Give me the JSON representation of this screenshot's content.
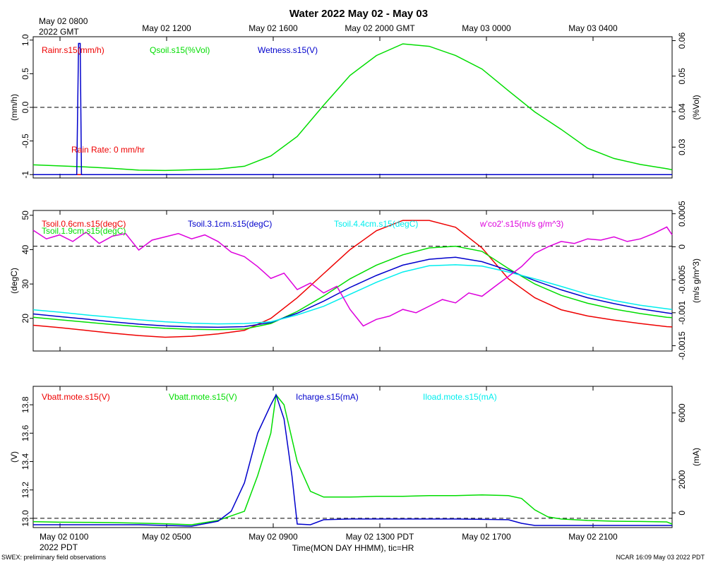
{
  "title": "Water 2022 May 02 - May 03",
  "top_axis": {
    "first_label": [
      "May 02 0800",
      "2022 GMT"
    ],
    "labels": [
      "May 02 1200",
      "May 02 1600",
      "May 02 2000 GMT",
      "May 03 0000",
      "May 03 0400"
    ]
  },
  "bottom_axis": {
    "first_label": [
      "May 02 0100",
      "2022 PDT"
    ],
    "labels": [
      "May 02 0500",
      "May 02 0900",
      "May 02 1300 PDT",
      "May 02 1700",
      "May 02 2100"
    ],
    "xlabel": "Time(MON DAY HHMM), tic=HR"
  },
  "footer_left": "SWEX: preliminary field observations",
  "footer_right": "NCAR 16:09 May 03 2022 PDT",
  "colors": {
    "red": "#ee0000",
    "green": "#00dd00",
    "blue": "#0000cc",
    "cyan": "#00eeee",
    "magenta": "#dd00dd",
    "black": "#000000"
  },
  "chart_data": [
    {
      "type": "line",
      "x_units": "hours since May 02 0000 PDT",
      "xlim": [
        0.0,
        24.2
      ],
      "left_axis": {
        "label": "(mm/h)",
        "ylim": [
          -1.05,
          1.05
        ],
        "ticks": [
          "-1",
          "-0.5",
          "0.0",
          "0.5",
          "1.0"
        ]
      },
      "right_axis": {
        "label": "(%Vol)",
        "ylim": [
          0.0213,
          0.0611
        ],
        "ticks": [
          "0.03",
          "0.04",
          "0.05",
          "0.06"
        ]
      },
      "legend": [
        "Rainr.s15(mm/h)",
        "Qsoil.s15(%Vol)",
        "Wetness.s15(V)"
      ],
      "annotation": "Rain Rate: 0 mm/hr",
      "reference_line": 0.0,
      "series": [
        {
          "name": "Rainr.s15(mm/h)",
          "axis": "left",
          "color": "red",
          "x": [
            0.0,
            24.2
          ],
          "y": [
            -1.0,
            -1.0
          ]
        },
        {
          "name": "Qsoil.s15(%Vol)",
          "axis": "right",
          "color": "green",
          "x": [
            0.0,
            1.0,
            2.0,
            3.0,
            4.0,
            5.0,
            6.0,
            7.0,
            8.0,
            9.0,
            10.0,
            11.0,
            12.0,
            13.0,
            14.0,
            15.0,
            16.0,
            17.0,
            18.0,
            19.0,
            20.0,
            21.0,
            22.0,
            23.0,
            24.0,
            24.2
          ],
          "y": [
            0.025,
            0.0247,
            0.0244,
            0.024,
            0.0235,
            0.0234,
            0.0236,
            0.0238,
            0.0246,
            0.0275,
            0.033,
            0.0418,
            0.0502,
            0.0558,
            0.0591,
            0.0584,
            0.0558,
            0.052,
            0.0459,
            0.0399,
            0.035,
            0.0297,
            0.0268,
            0.0251,
            0.0239,
            0.0236
          ]
        },
        {
          "name": "Wetness.s15(V)",
          "axis": "left",
          "color": "blue",
          "x": [
            0.0,
            1.65,
            1.72,
            1.78,
            1.83,
            24.2
          ],
          "y": [
            -1.0,
            -1.0,
            0.95,
            0.95,
            -1.0,
            -1.0
          ]
        }
      ]
    },
    {
      "type": "line",
      "x_units": "hours since May 02 0000 PDT",
      "xlim": [
        0.0,
        24.2
      ],
      "left_axis": {
        "label": "(degC)",
        "ylim": [
          10.5,
          51.4
        ],
        "ticks": [
          "20",
          "30",
          "40",
          "50"
        ]
      },
      "right_axis": {
        "label": "(m/s g/m^3)",
        "ylim": [
          -0.00158,
          0.00055
        ],
        "ticks": [
          "-0.0015",
          "-0.001",
          "-0.0005",
          "0",
          "0.0005"
        ]
      },
      "legend": [
        "Tsoil.0.6cm.s15(degC)",
        "Tsoil.1.9cm.s15(degC)",
        "Tsoil.3.1cm.s15(degC)",
        "Tsoil.4.4cm.s15(degC)",
        "w'co2'.s15(m/s g/m^3)"
      ],
      "reference_line": 41.0,
      "series": [
        {
          "name": "Tsoil.0.6cm.s15(degC)",
          "axis": "left",
          "color": "red",
          "x": [
            0.0,
            1.0,
            2.0,
            3.0,
            4.0,
            5.0,
            6.0,
            7.0,
            8.0,
            9.0,
            10.0,
            11.0,
            12.0,
            13.0,
            14.0,
            15.0,
            16.0,
            17.0,
            18.0,
            19.0,
            20.0,
            21.0,
            22.0,
            23.0,
            24.0,
            24.2
          ],
          "y": [
            18.0,
            17.3,
            16.5,
            15.7,
            15.0,
            14.5,
            14.8,
            15.5,
            16.5,
            20.0,
            26.0,
            33.0,
            40.0,
            45.5,
            48.5,
            48.5,
            46.5,
            40.5,
            31.5,
            26.0,
            22.5,
            20.7,
            19.5,
            18.5,
            17.6,
            17.5
          ]
        },
        {
          "name": "Tsoil.1.9cm.s15(degC)",
          "axis": "left",
          "color": "green",
          "x": [
            0.0,
            1.0,
            2.0,
            3.0,
            4.0,
            5.0,
            6.0,
            7.0,
            8.0,
            9.0,
            10.0,
            11.0,
            12.0,
            13.0,
            14.0,
            15.0,
            16.0,
            17.0,
            18.0,
            19.0,
            20.0,
            21.0,
            22.0,
            23.0,
            24.0,
            24.2
          ],
          "y": [
            20.3,
            19.6,
            18.9,
            18.2,
            17.6,
            17.1,
            16.8,
            16.7,
            16.9,
            18.5,
            22.0,
            26.5,
            31.5,
            35.5,
            38.5,
            40.5,
            41.0,
            39.5,
            34.5,
            30.0,
            26.7,
            24.4,
            22.7,
            21.4,
            20.3,
            20.2
          ]
        },
        {
          "name": "Tsoil.3.1cm.s15(degC)",
          "axis": "left",
          "color": "blue",
          "x": [
            0.0,
            1.0,
            2.0,
            3.0,
            4.0,
            5.0,
            6.0,
            7.0,
            8.0,
            9.0,
            10.0,
            11.0,
            12.0,
            13.0,
            14.0,
            15.0,
            16.0,
            17.0,
            18.0,
            19.0,
            20.0,
            21.0,
            22.0,
            23.0,
            24.0,
            24.2
          ],
          "y": [
            21.3,
            20.5,
            19.8,
            19.0,
            18.3,
            17.8,
            17.5,
            17.4,
            17.6,
            18.8,
            21.5,
            25.0,
            29.0,
            32.5,
            35.5,
            37.2,
            37.8,
            36.5,
            34.0,
            31.0,
            28.3,
            26.0,
            24.3,
            22.8,
            21.6,
            21.4
          ]
        },
        {
          "name": "Tsoil.4.4cm.s15(degC)",
          "axis": "left",
          "color": "cyan",
          "x": [
            0.0,
            1.0,
            2.0,
            3.0,
            4.0,
            5.0,
            6.0,
            7.0,
            8.0,
            9.0,
            10.0,
            11.0,
            12.0,
            13.0,
            14.0,
            15.0,
            16.0,
            17.0,
            18.0,
            19.0,
            20.0,
            21.0,
            22.0,
            23.0,
            24.0,
            24.2
          ],
          "y": [
            22.5,
            21.8,
            21.0,
            20.3,
            19.6,
            19.0,
            18.6,
            18.4,
            18.5,
            19.0,
            21.0,
            23.5,
            27.0,
            30.5,
            33.5,
            35.3,
            35.6,
            35.2,
            33.5,
            31.5,
            29.3,
            27.0,
            25.2,
            23.8,
            22.8,
            22.6
          ]
        },
        {
          "name": "w'co2'.s15(m/s g/m^3)",
          "axis": "right",
          "color": "magenta",
          "x": [
            0.0,
            0.5,
            1.0,
            1.5,
            2.0,
            2.5,
            3.0,
            3.5,
            4.0,
            4.5,
            5.0,
            5.5,
            6.0,
            6.5,
            7.0,
            7.5,
            8.0,
            8.5,
            9.0,
            9.5,
            10.0,
            10.5,
            11.0,
            11.5,
            12.0,
            12.5,
            13.0,
            13.5,
            14.0,
            14.5,
            15.0,
            15.5,
            16.0,
            16.5,
            17.0,
            17.5,
            18.0,
            18.5,
            19.0,
            19.5,
            20.0,
            20.5,
            21.0,
            21.5,
            22.0,
            22.5,
            23.0,
            23.5,
            24.0,
            24.2
          ],
          "y": [
            0.00025,
            0.00012,
            0.00018,
            8e-05,
            0.00022,
            5e-05,
            0.00016,
            0.0002,
            -5e-05,
            0.0001,
            0.00015,
            0.0002,
            0.00012,
            0.00018,
            8e-05,
            -8e-05,
            -0.00015,
            -0.0003,
            -0.00048,
            -0.0004,
            -0.00065,
            -0.00055,
            -0.0007,
            -0.0006,
            -0.00095,
            -0.0012,
            -0.0011,
            -0.00105,
            -0.00095,
            -0.001,
            -0.0009,
            -0.0008,
            -0.00085,
            -0.0007,
            -0.00075,
            -0.0006,
            -0.00045,
            -0.0003,
            -0.0001,
            0.0,
            8e-05,
            5e-05,
            0.00012,
            0.0001,
            0.00015,
            8e-05,
            0.00012,
            0.0002,
            0.0003,
            0.00018
          ]
        }
      ]
    },
    {
      "type": "line",
      "x_units": "hours since May 02 0000 PDT",
      "xlim": [
        0.0,
        24.2
      ],
      "left_axis": {
        "label": "(V)",
        "ylim": [
          12.935,
          13.93
        ],
        "ticks": [
          "13.0",
          "13.2",
          "13.4",
          "13.6",
          "13.8"
        ]
      },
      "right_axis": {
        "label": "(mA)",
        "ylim": [
          -880,
          7600
        ],
        "ticks": [
          "0",
          "2000",
          "6000"
        ]
      },
      "legend": [
        "Vbatt.mote.s15(V)",
        "Vbatt.mote.s15(V)",
        "Icharge.s15(mA)",
        "Iload.mote.s15(mA)"
      ],
      "reference_line": 13.0,
      "series": [
        {
          "name": "Vbatt.mote.s15(V)",
          "axis": "left",
          "color": "green",
          "x": [
            0.0,
            1.0,
            2.0,
            3.0,
            4.0,
            5.0,
            6.0,
            7.0,
            8.0,
            8.5,
            9.0,
            9.2,
            9.5,
            10.0,
            10.5,
            11.0,
            12.0,
            13.0,
            14.0,
            15.0,
            16.0,
            17.0,
            18.0,
            18.5,
            19.0,
            19.5,
            20.0,
            21.0,
            22.0,
            23.0,
            24.0,
            24.2
          ],
          "y": [
            12.977,
            12.973,
            12.972,
            12.97,
            12.966,
            12.962,
            12.955,
            12.985,
            13.05,
            13.3,
            13.6,
            13.87,
            13.8,
            13.4,
            13.19,
            13.15,
            13.15,
            13.155,
            13.155,
            13.16,
            13.16,
            13.165,
            13.16,
            13.14,
            13.06,
            13.01,
            12.995,
            12.985,
            12.98,
            12.978,
            12.975,
            12.96
          ]
        },
        {
          "name": "Icharge.s15(mA)",
          "axis": "left",
          "color": "blue",
          "x": [
            0.0,
            2.0,
            4.0,
            6.0,
            7.0,
            7.5,
            8.0,
            8.5,
            9.0,
            9.2,
            9.5,
            9.8,
            10.0,
            10.5,
            11.0,
            12.0,
            14.0,
            16.0,
            18.0,
            18.5,
            19.0,
            20.0,
            22.0,
            24.0,
            24.2
          ],
          "y": [
            12.955,
            12.955,
            12.955,
            12.945,
            12.98,
            13.05,
            13.25,
            13.6,
            13.8,
            13.87,
            13.7,
            13.3,
            12.96,
            12.955,
            12.99,
            12.995,
            12.995,
            12.995,
            12.99,
            12.965,
            12.95,
            12.95,
            12.95,
            12.95,
            12.95
          ]
        }
      ]
    }
  ]
}
